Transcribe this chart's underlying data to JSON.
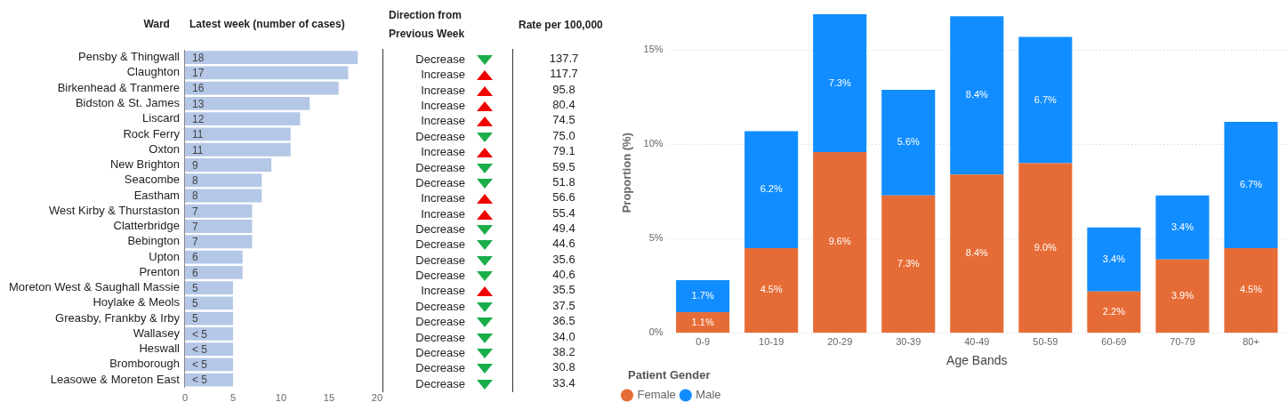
{
  "chart_data": [
    {
      "type": "bar",
      "orientation": "horizontal",
      "title": "Latest week (number of cases)",
      "ylabel": "Ward",
      "categories": [
        "Pensby & Thingwall",
        "Claughton",
        "Birkenhead & Tranmere",
        "Bidston & St. James",
        "Liscard",
        "Rock Ferry",
        "Oxton",
        "New Brighton",
        "Seacombe",
        "Eastham",
        "West Kirby & Thurstaston",
        "Clatterbridge",
        "Bebington",
        "Upton",
        "Prenton",
        "Moreton West & Saughall Massie",
        "Hoylake & Meols",
        "Greasby, Frankby & Irby",
        "Wallasey",
        "Heswall",
        "Bromborough",
        "Leasowe & Moreton East"
      ],
      "values": [
        18,
        17,
        16,
        13,
        12,
        11,
        11,
        9,
        8,
        8,
        7,
        7,
        7,
        6,
        6,
        5,
        5,
        5,
        5,
        5,
        5,
        5
      ],
      "value_labels": [
        "18",
        "17",
        "16",
        "13",
        "12",
        "11",
        "11",
        "9",
        "8",
        "8",
        "7",
        "7",
        "7",
        "6",
        "6",
        "5",
        "5",
        "5",
        "< 5",
        "< 5",
        "< 5",
        "< 5"
      ],
      "color": "#b4c7e7",
      "xlim": [
        0,
        20
      ],
      "xticks": [
        0,
        5,
        10,
        15,
        20
      ]
    },
    {
      "type": "other",
      "annotations": [
        "Direction from Previous Week",
        "Rate per 100,000"
      ],
      "categories": [
        "Decrease",
        "Increase",
        "Increase",
        "Increase",
        "Increase",
        "Decrease",
        "Increase",
        "Decrease",
        "Decrease",
        "Increase",
        "Increase",
        "Decrease",
        "Decrease",
        "Decrease",
        "Decrease",
        "Increase",
        "Decrease",
        "Decrease",
        "Decrease",
        "Decrease",
        "Decrease",
        "Decrease"
      ],
      "values": [
        137.7,
        117.7,
        95.8,
        80.4,
        74.5,
        75.0,
        79.1,
        59.5,
        51.8,
        56.6,
        55.4,
        49.4,
        44.6,
        35.6,
        40.6,
        35.5,
        37.5,
        36.5,
        34.0,
        38.2,
        30.8,
        33.4
      ],
      "value_labels": [
        "137.7",
        "117.7",
        "95.8",
        "80.4",
        "74.5",
        "75.0",
        "79.1",
        "59.5",
        "51.8",
        "56.6",
        "55.4",
        "49.4",
        "44.6",
        "35.6",
        "40.6",
        "35.5",
        "37.5",
        "36.5",
        "34.0",
        "38.2",
        "30.8",
        "33.4"
      ],
      "colors": [
        "#1aae4a",
        "#f00000",
        "#f00000",
        "#f00000",
        "#f00000",
        "#1aae4a",
        "#f00000",
        "#1aae4a",
        "#1aae4a",
        "#f00000",
        "#f00000",
        "#1aae4a",
        "#1aae4a",
        "#1aae4a",
        "#1aae4a",
        "#f00000",
        "#1aae4a",
        "#1aae4a",
        "#1aae4a",
        "#1aae4a",
        "#1aae4a",
        "#1aae4a"
      ]
    },
    {
      "type": "bar",
      "stacked": true,
      "categories": [
        "0-9",
        "10-19",
        "20-29",
        "30-39",
        "40-49",
        "50-59",
        "60-69",
        "70-79",
        "80+"
      ],
      "series": [
        {
          "name": "Female",
          "color": "#e66c37",
          "values": [
            1.1,
            4.5,
            9.6,
            7.3,
            8.4,
            9.0,
            2.2,
            3.9,
            4.5
          ],
          "value_labels": [
            "1.1%",
            "4.5%",
            "9.6%",
            "7.3%",
            "8.4%",
            "9.0%",
            "2.2%",
            "3.9%",
            "4.5%"
          ]
        },
        {
          "name": "Male",
          "color": "#118dff",
          "values": [
            1.7,
            6.2,
            7.3,
            5.6,
            8.4,
            6.7,
            3.4,
            3.4,
            6.7
          ],
          "value_labels": [
            "1.7%",
            "6.2%",
            "7.3%",
            "5.6%",
            "8.4%",
            "6.7%",
            "3.4%",
            "3.4%",
            "6.7%"
          ]
        }
      ],
      "xlabel": "Age Bands",
      "ylabel": "Proportion (%)",
      "ylim": [
        0,
        17
      ],
      "yticks": [
        {
          "value": 0,
          "label": "0%"
        },
        {
          "value": 5,
          "label": "5%"
        },
        {
          "value": 10,
          "label": "10%"
        },
        {
          "value": 15,
          "label": "15%"
        }
      ],
      "grid": "y",
      "legend": "bottom left",
      "legend_title": "Patient Gender"
    }
  ]
}
